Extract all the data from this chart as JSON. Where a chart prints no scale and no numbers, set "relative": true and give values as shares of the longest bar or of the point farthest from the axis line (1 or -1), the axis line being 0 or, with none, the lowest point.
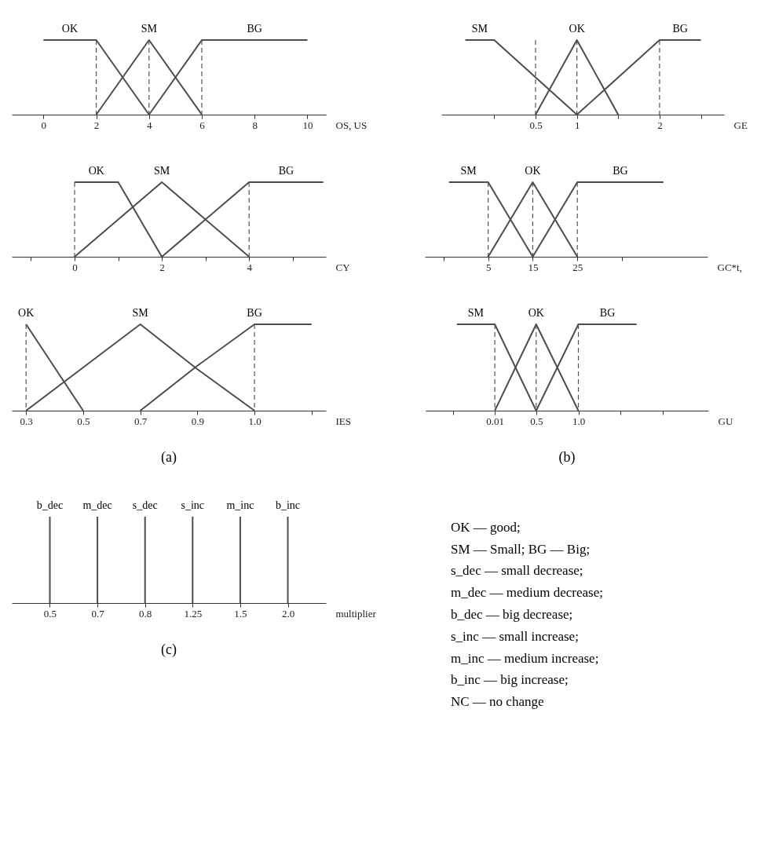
{
  "chart_data": [
    {
      "type": "line",
      "relative": true,
      "xlabel": "OS, US",
      "xlim": [
        -1.2,
        10.7
      ],
      "xticks": [
        0,
        2,
        4,
        6,
        8,
        10
      ],
      "grid": false,
      "legend": false,
      "series": [
        {
          "name": "OK",
          "color": "#4d4d4d",
          "x": [
            0,
            2,
            4
          ],
          "values": [
            1,
            1,
            0
          ]
        },
        {
          "name": "SM",
          "color": "#4d4d4d",
          "x": [
            2,
            4,
            6
          ],
          "values": [
            0,
            1,
            0
          ]
        },
        {
          "name": "BG",
          "color": "#4d4d4d",
          "x": [
            4,
            6,
            10
          ],
          "values": [
            0,
            1,
            1
          ]
        }
      ],
      "ref_lines": [
        {
          "axis": "x",
          "value": 2,
          "color": "#555555",
          "line_style": "dashed"
        },
        {
          "axis": "x",
          "value": 4,
          "color": "#555555",
          "line_style": "dashed"
        },
        {
          "axis": "x",
          "value": 6,
          "color": "#555555",
          "line_style": "dashed"
        }
      ]
    },
    {
      "type": "line",
      "relative": true,
      "xlabel": "GE",
      "xlim": [
        -0.64,
        2.78
      ],
      "xticks": [
        {
          "value": 0,
          "label": null
        },
        0.5,
        1,
        {
          "value": 1.5,
          "label": null
        },
        2,
        {
          "value": 2.5,
          "label": null
        }
      ],
      "grid": false,
      "legend": false,
      "series": [
        {
          "name": "SM",
          "color": "#4d4d4d",
          "x": [
            -0.35,
            0,
            1
          ],
          "values": [
            1,
            1,
            0
          ]
        },
        {
          "name": "OK",
          "color": "#4d4d4d",
          "x": [
            0.5,
            1,
            1.5
          ],
          "values": [
            0,
            1,
            0
          ]
        },
        {
          "name": "BG",
          "color": "#4d4d4d",
          "x": [
            1,
            2,
            2.5
          ],
          "values": [
            0,
            1,
            1
          ]
        }
      ],
      "ref_lines": [
        {
          "axis": "x",
          "value": 0.5,
          "color": "#555555",
          "line_style": "dashed"
        },
        {
          "axis": "x",
          "value": 1,
          "color": "#555555",
          "line_style": "dashed"
        },
        {
          "axis": "x",
          "value": 2,
          "color": "#555555",
          "line_style": "dashed"
        }
      ]
    },
    {
      "type": "line",
      "relative": true,
      "xlabel": "CY",
      "xlim": [
        -1.44,
        5.76
      ],
      "xticks": [
        {
          "value": -1,
          "label": null
        },
        0,
        {
          "value": 1,
          "label": null
        },
        2,
        {
          "value": 3,
          "label": null
        },
        4,
        {
          "value": 5,
          "label": null
        }
      ],
      "grid": false,
      "legend": false,
      "series": [
        {
          "name": "OK",
          "color": "#4d4d4d",
          "x": [
            0,
            1,
            2
          ],
          "values": [
            1,
            1,
            0
          ]
        },
        {
          "name": "SM",
          "color": "#4d4d4d",
          "x": [
            0,
            2,
            4
          ],
          "values": [
            0,
            1,
            0
          ]
        },
        {
          "name": "BG",
          "color": "#4d4d4d",
          "x": [
            2,
            4,
            5.7
          ],
          "values": [
            0,
            1,
            1
          ]
        }
      ],
      "ref_lines": [
        {
          "axis": "x",
          "value": 0,
          "color": "#555555",
          "line_style": "dashed"
        },
        {
          "axis": "x",
          "value": 4,
          "color": "#555555",
          "line_style": "dashed"
        }
      ]
    },
    {
      "type": "line",
      "relative": true,
      "xlabel": "GC*t,",
      "xlim": [
        -9.2,
        54.2
      ],
      "xticks": [
        {
          "value": -5,
          "label": null
        },
        5,
        15,
        25,
        {
          "value": 35,
          "label": null
        }
      ],
      "grid": false,
      "legend": false,
      "series": [
        {
          "name": "SM",
          "color": "#4d4d4d",
          "x": [
            -3.8,
            5,
            15
          ],
          "values": [
            1,
            1,
            0
          ]
        },
        {
          "name": "OK",
          "color": "#4d4d4d",
          "x": [
            5,
            15,
            25
          ],
          "values": [
            0,
            1,
            0
          ]
        },
        {
          "name": "BG",
          "color": "#4d4d4d",
          "x": [
            15,
            25,
            44.3
          ],
          "values": [
            0,
            1,
            1
          ]
        }
      ],
      "ref_lines": [
        {
          "axis": "x",
          "value": 5,
          "color": "#555555",
          "line_style": "dashed"
        },
        {
          "axis": "x",
          "value": 15,
          "color": "#555555",
          "line_style": "dashed"
        },
        {
          "axis": "x",
          "value": 25,
          "color": "#555555",
          "line_style": "dashed"
        }
      ]
    },
    {
      "type": "line",
      "relative": true,
      "xlabel": "IES",
      "categories": [
        "0.3",
        "0.5",
        "0.7",
        "0.9",
        "1.0",
        null
      ],
      "grid": false,
      "legend": false,
      "annotations": [
        "(a)"
      ],
      "series": [
        {
          "name": "OK",
          "color": "#4d4d4d",
          "values": [
            1,
            0,
            null,
            null,
            null,
            null
          ]
        },
        {
          "name": "SM",
          "color": "#4d4d4d",
          "values": [
            0,
            0.5,
            1,
            0.48,
            0,
            null
          ]
        },
        {
          "name": "BG",
          "color": "#4d4d4d",
          "values": [
            null,
            null,
            0,
            0.52,
            1,
            1
          ]
        }
      ],
      "ref_lines": [
        {
          "axis": "x",
          "value": "0.3",
          "color": "#555555",
          "line_style": "dashed"
        },
        {
          "axis": "x",
          "value": "1.0",
          "color": "#555555",
          "line_style": "dashed"
        }
      ]
    },
    {
      "type": "line",
      "relative": true,
      "xlabel": "GU",
      "xlim": [
        -0.81,
        2.54
      ],
      "xticks": [
        {
          "value": -0.48,
          "label": null
        },
        0.01,
        0.5,
        {
          "value": 1.0,
          "label": "1.0"
        },
        {
          "value": 1.5,
          "label": null
        },
        {
          "value": 2.0,
          "label": null
        }
      ],
      "grid": false,
      "legend": false,
      "annotations": [
        "(b)"
      ],
      "series": [
        {
          "name": "SM",
          "color": "#4d4d4d",
          "x": [
            -0.44,
            0.01,
            0.5
          ],
          "values": [
            1,
            1,
            0
          ]
        },
        {
          "name": "OK",
          "color": "#4d4d4d",
          "x": [
            0.01,
            0.5,
            1.0
          ],
          "values": [
            0,
            1,
            0
          ]
        },
        {
          "name": "BG",
          "color": "#4d4d4d",
          "x": [
            0.5,
            1.0,
            1.69
          ],
          "values": [
            0,
            1,
            1
          ]
        }
      ],
      "ref_lines": [
        {
          "axis": "x",
          "value": 0.01,
          "color": "#555555",
          "line_style": "dashed"
        },
        {
          "axis": "x",
          "value": 0.5,
          "color": "#555555",
          "line_style": "dashed"
        },
        {
          "axis": "x",
          "value": 1.0,
          "color": "#555555",
          "line_style": "dashed"
        }
      ]
    },
    {
      "type": "bar",
      "relative": true,
      "xlabel": "multiplier",
      "categories": [
        "0.5",
        "0.7",
        "0.8",
        "1.25",
        "1.5",
        "2.0"
      ],
      "grid": false,
      "legend": false,
      "annotations": [
        "(c)"
      ],
      "series": [
        {
          "name": "b_dec",
          "color": "#4d4d4d",
          "values": [
            1,
            null,
            null,
            null,
            null,
            null
          ]
        },
        {
          "name": "m_dec",
          "color": "#4d4d4d",
          "values": [
            null,
            1,
            null,
            null,
            null,
            null
          ]
        },
        {
          "name": "s_dec",
          "color": "#4d4d4d",
          "values": [
            null,
            null,
            1,
            null,
            null,
            null
          ]
        },
        {
          "name": "s_inc",
          "color": "#4d4d4d",
          "values": [
            null,
            null,
            null,
            1,
            null,
            null
          ]
        },
        {
          "name": "m_inc",
          "color": "#4d4d4d",
          "values": [
            null,
            null,
            null,
            null,
            1,
            null
          ]
        },
        {
          "name": "b_inc",
          "color": "#4d4d4d",
          "values": [
            null,
            null,
            null,
            null,
            null,
            1
          ]
        }
      ]
    },
    {
      "type": "other",
      "annotations": [
        "OK — good;",
        "SM — Small;        BG — Big;",
        "s_dec — small decrease;",
        "m_dec — medium decrease;",
        "b_dec — big decrease;",
        "s_inc — small increase;",
        "m_inc — medium increase;",
        "b_inc — big increase;",
        "NC — no change"
      ]
    }
  ]
}
